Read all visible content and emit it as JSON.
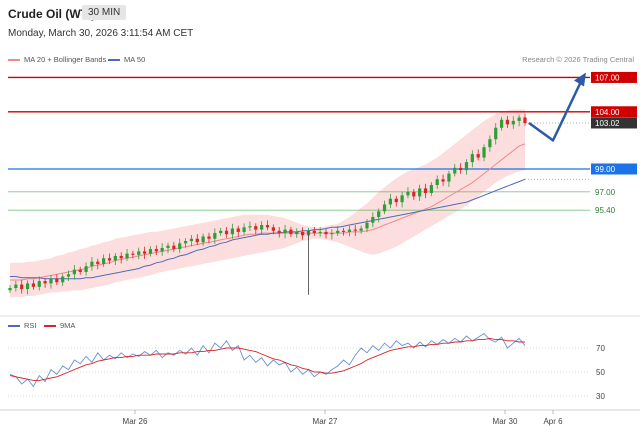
{
  "header": {
    "title": "Crude Oil (WTI)",
    "timeframe": "30 MIN",
    "datetime": "Monday, March 30, 2026 3:11:54 AM CET",
    "credit": "Research © 2026 Trading Central"
  },
  "legends": {
    "ma20": "MA 20 + Bollinger Bands",
    "ma50": "MA 50",
    "rsi": "RSI",
    "ma9": "9MA"
  },
  "colors": {
    "up": "#2e9e3a",
    "down": "#d62728",
    "bollinger": "#fbd3d3",
    "ma20": "#f08a8a",
    "ma50": "#4f6bb8",
    "resistance": "#d00000",
    "support_blue": "#1a73e8",
    "support_green": "#4caf50",
    "arrow": "#2b5aa8"
  },
  "chart_data": [
    {
      "type": "candlestick",
      "title": "Crude Oil (WTI)",
      "timeframe": "30 MIN",
      "x_tick_labels": [
        "Mar 26",
        "Mar 27",
        "Mar 30",
        "Apr 6"
      ],
      "levels": [
        {
          "value": 107.0,
          "label": "107.00",
          "style": "resistance"
        },
        {
          "value": 104.0,
          "label": "104.00",
          "style": "resistance"
        },
        {
          "value": 103.02,
          "label": "103.02",
          "style": "last"
        },
        {
          "value": 99.0,
          "label": "99.00",
          "style": "support_blue"
        },
        {
          "value": 97.0,
          "label": "97.00",
          "style": "support_green"
        },
        {
          "value": 95.4,
          "label": "95.40",
          "style": "support_green"
        }
      ],
      "last_price": 103.02,
      "projection": [
        103.02,
        101.5,
        107.0
      ],
      "close": [
        88.6,
        88.9,
        88.5,
        89.0,
        88.7,
        89.2,
        89.0,
        89.4,
        89.1,
        89.6,
        89.8,
        90.2,
        90.0,
        90.5,
        90.9,
        90.7,
        91.2,
        91.0,
        91.4,
        91.2,
        91.6,
        91.5,
        91.8,
        91.6,
        92.0,
        91.8,
        92.1,
        92.3,
        92.0,
        92.5,
        92.7,
        92.9,
        92.6,
        93.1,
        92.9,
        93.4,
        93.6,
        93.3,
        93.8,
        93.5,
        93.9,
        94.0,
        93.7,
        94.1,
        93.9,
        93.6,
        93.4,
        93.7,
        93.3,
        93.5,
        93.2,
        93.6,
        93.4,
        93.5,
        93.3,
        93.4,
        93.6,
        93.5,
        93.7,
        93.6,
        93.8,
        94.3,
        94.8,
        95.3,
        95.9,
        96.4,
        96.1,
        96.7,
        97.0,
        96.6,
        97.3,
        96.9,
        97.6,
        98.1,
        97.9,
        98.6,
        99.1,
        98.9,
        99.6,
        100.3,
        100.0,
        100.9,
        101.6,
        102.6,
        103.3,
        102.9,
        103.2,
        103.5,
        103.02
      ],
      "ma20": [
        89.3,
        89.3,
        89.3,
        89.4,
        89.4,
        89.5,
        89.6,
        89.7,
        89.8,
        89.9,
        90.0,
        90.1,
        90.2,
        90.3,
        90.5,
        90.6,
        90.7,
        90.8,
        91.0,
        91.1,
        91.2,
        91.3,
        91.4,
        91.5,
        91.6,
        91.7,
        91.8,
        91.9,
        92.0,
        92.1,
        92.2,
        92.3,
        92.4,
        92.5,
        92.6,
        92.7,
        92.8,
        92.9,
        93.0,
        93.1,
        93.2,
        93.3,
        93.3,
        93.4,
        93.4,
        93.4,
        93.4,
        93.4,
        93.4,
        93.4,
        93.4,
        93.4,
        93.4,
        93.4,
        93.4,
        93.4,
        93.4,
        93.4,
        93.5,
        93.5,
        93.5,
        93.6,
        93.7,
        93.9,
        94.1,
        94.3,
        94.5,
        94.7,
        94.9,
        95.1,
        95.3,
        95.5,
        95.7,
        96.0,
        96.3,
        96.6,
        96.9,
        97.2,
        97.5,
        97.8,
        98.2,
        98.6,
        99.0,
        99.4,
        99.8,
        100.2,
        100.6,
        101.0,
        101.2
      ],
      "ma50": [
        89.6,
        89.6,
        89.5,
        89.5,
        89.5,
        89.5,
        89.4,
        89.4,
        89.4,
        89.4,
        89.4,
        89.4,
        89.4,
        89.5,
        89.5,
        89.6,
        89.7,
        89.8,
        89.9,
        90.0,
        90.1,
        90.2,
        90.3,
        90.5,
        90.6,
        90.8,
        90.9,
        91.1,
        91.2,
        91.4,
        91.5,
        91.7,
        91.9,
        92.0,
        92.2,
        92.3,
        92.5,
        92.6,
        92.8,
        92.9,
        93.0,
        93.1,
        93.2,
        93.3,
        93.3,
        93.4,
        93.4,
        93.5,
        93.5,
        93.5,
        93.6,
        93.6,
        93.7,
        93.7,
        93.8,
        93.9,
        93.9,
        94.0,
        94.1,
        94.2,
        94.3,
        94.4,
        94.5,
        94.6,
        94.7,
        94.8,
        94.9,
        95.0,
        95.1,
        95.2,
        95.3,
        95.4,
        95.5,
        95.6,
        95.7,
        95.8,
        95.9,
        96.0,
        96.1,
        96.3,
        96.5,
        96.7,
        96.9,
        97.1,
        97.3,
        97.5,
        97.7,
        97.9,
        98.1
      ],
      "bb_upper": [
        90.8,
        90.8,
        90.8,
        90.9,
        90.9,
        91.0,
        91.1,
        91.2,
        91.4,
        91.5,
        91.7,
        91.8,
        92.0,
        92.1,
        92.3,
        92.4,
        92.6,
        92.7,
        92.9,
        93.0,
        93.1,
        93.2,
        93.3,
        93.4,
        93.5,
        93.5,
        93.6,
        93.7,
        93.8,
        93.9,
        94.0,
        94.1,
        94.2,
        94.3,
        94.4,
        94.5,
        94.6,
        94.7,
        94.8,
        94.9,
        95.0,
        95.0,
        95.0,
        95.0,
        95.0,
        94.9,
        94.8,
        94.7,
        94.5,
        94.3,
        94.1,
        94.0,
        93.9,
        93.9,
        94.0,
        94.1,
        94.2,
        94.5,
        94.8,
        95.2,
        95.6,
        96.0,
        96.5,
        97.0,
        97.4,
        97.8,
        98.2,
        98.5,
        98.8,
        99.0,
        99.2,
        99.4,
        99.7,
        100.0,
        100.4,
        100.8,
        101.2,
        101.6,
        102.0,
        102.4,
        102.8,
        103.2,
        103.5,
        103.8,
        104.0,
        104.1,
        104.2,
        104.2,
        104.2
      ],
      "bb_lower": [
        87.8,
        87.8,
        87.8,
        87.9,
        87.9,
        88.0,
        88.1,
        88.2,
        88.2,
        88.3,
        88.3,
        88.4,
        88.4,
        88.5,
        88.6,
        88.7,
        88.8,
        88.9,
        89.1,
        89.2,
        89.3,
        89.4,
        89.5,
        89.6,
        89.7,
        89.9,
        90.0,
        90.1,
        90.2,
        90.3,
        90.4,
        90.5,
        90.6,
        90.7,
        90.8,
        90.9,
        91.0,
        91.1,
        91.2,
        91.3,
        91.4,
        91.5,
        91.6,
        91.7,
        91.8,
        91.9,
        92.0,
        92.1,
        92.3,
        92.5,
        92.7,
        92.8,
        92.9,
        92.9,
        92.8,
        92.7,
        92.6,
        92.4,
        92.2,
        92.0,
        91.8,
        91.6,
        91.5,
        91.6,
        91.8,
        92.0,
        92.2,
        92.5,
        92.8,
        93.1,
        93.4,
        93.7,
        94.0,
        94.3,
        94.6,
        94.9,
        95.2,
        95.5,
        95.8,
        96.2,
        96.6,
        97.0,
        97.4,
        97.8,
        98.1,
        98.4,
        98.6,
        98.8,
        98.9
      ]
    },
    {
      "type": "line",
      "title": "RSI",
      "ylim": [
        20,
        85
      ],
      "y_tick_labels": [
        "70",
        "50",
        "30"
      ],
      "series": [
        {
          "name": "RSI",
          "values": [
            48,
            46,
            40,
            44,
            38,
            47,
            42,
            52,
            48,
            55,
            52,
            60,
            57,
            63,
            58,
            66,
            60,
            64,
            61,
            66,
            62,
            65,
            63,
            67,
            64,
            68,
            62,
            66,
            64,
            68,
            65,
            70,
            64,
            72,
            66,
            74,
            70,
            76,
            68,
            72,
            60,
            64,
            58,
            62,
            55,
            60,
            56,
            58,
            50,
            54,
            48,
            52,
            46,
            50,
            48,
            52,
            55,
            60,
            56,
            64,
            70,
            66,
            72,
            68,
            74,
            70,
            76,
            72,
            74,
            70,
            75,
            71,
            76,
            73,
            77,
            74,
            78,
            75,
            80,
            76,
            79,
            82,
            77,
            75,
            79,
            70,
            74,
            78,
            72
          ]
        },
        {
          "name": "9MA",
          "values": [
            47,
            46,
            45,
            44,
            43,
            43,
            44,
            45,
            46,
            48,
            50,
            52,
            54,
            56,
            57,
            59,
            60,
            61,
            62,
            62,
            63,
            63,
            64,
            64,
            64,
            65,
            65,
            65,
            65,
            66,
            66,
            66,
            67,
            67,
            68,
            68,
            69,
            70,
            70,
            70,
            69,
            68,
            67,
            65,
            63,
            61,
            60,
            58,
            56,
            55,
            53,
            52,
            50,
            50,
            49,
            49,
            50,
            51,
            53,
            55,
            57,
            60,
            62,
            64,
            66,
            68,
            69,
            70,
            71,
            71,
            72,
            72,
            73,
            73,
            74,
            74,
            75,
            75,
            76,
            76,
            77,
            77,
            78,
            77,
            77,
            76,
            76,
            75,
            75
          ]
        }
      ]
    }
  ]
}
